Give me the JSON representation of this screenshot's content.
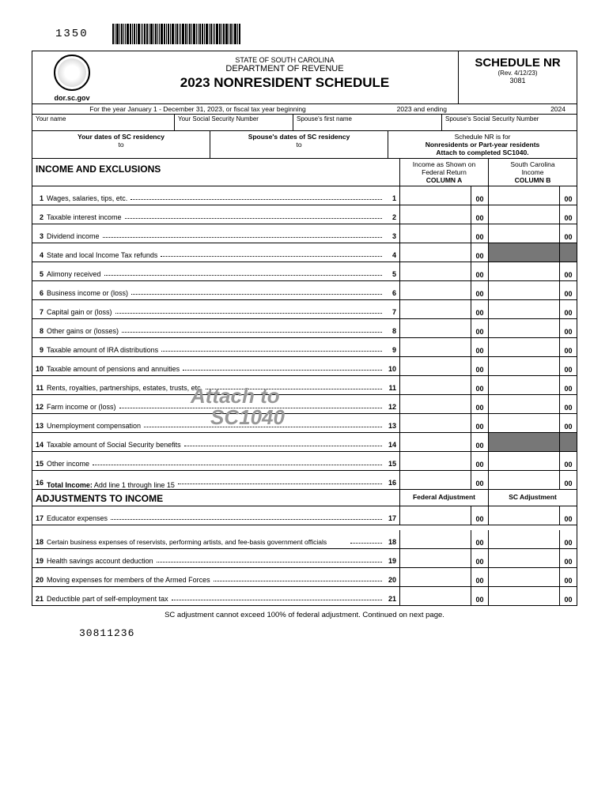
{
  "form_code_top": "1350",
  "header": {
    "state": "STATE OF SOUTH CAROLINA",
    "dept": "DEPARTMENT OF REVENUE",
    "title": "2023 NONRESIDENT SCHEDULE",
    "url": "dor.sc.gov",
    "schedule": "SCHEDULE NR",
    "revision": "(Rev. 4/12/23)",
    "code": "3081"
  },
  "year_row": {
    "text": "For the year January 1 - December 31, 2023,  or fiscal tax year beginning",
    "begin_year": "2023 and ending",
    "end_year": "2024"
  },
  "id_labels": {
    "name": "Your name",
    "ssn": "Your Social Security Number",
    "spouse_first": "Spouse's first name",
    "spouse_ssn": "Spouse's Social Security Number"
  },
  "residency": {
    "your_label": "Your dates of SC residency",
    "to1": "to",
    "spouse_label": "Spouse's dates of SC residency",
    "to2": "to",
    "sched_for": "Schedule NR is for",
    "nonres": "Nonresidents or Part-year residents",
    "attach": "Attach to completed SC1040."
  },
  "section1_title": "INCOME AND EXCLUSIONS",
  "colA_hdr1": "Income as Shown on",
  "colA_hdr2": "Federal Return",
  "colA_hdr3": "COLUMN A",
  "colB_hdr1": "South Carolina",
  "colB_hdr2": "Income",
  "colB_hdr3": "COLUMN B",
  "cents": "00",
  "lines": [
    {
      "n": "1",
      "desc": "Wages, salaries, tips, etc.",
      "shadeB": false
    },
    {
      "n": "2",
      "desc": "Taxable interest income",
      "shadeB": false
    },
    {
      "n": "3",
      "desc": "Dividend income",
      "shadeB": false
    },
    {
      "n": "4",
      "desc": "State and local Income Tax refunds",
      "shadeB": true
    },
    {
      "n": "5",
      "desc": "Alimony received",
      "shadeB": false
    },
    {
      "n": "6",
      "desc": "Business income or (loss)",
      "shadeB": false
    },
    {
      "n": "7",
      "desc": "Capital gain or (loss)",
      "shadeB": false
    },
    {
      "n": "8",
      "desc": "Other gains or (losses)",
      "shadeB": false
    },
    {
      "n": "9",
      "desc": "Taxable amount of IRA distributions",
      "shadeB": false
    },
    {
      "n": "10",
      "desc": "Taxable amount of pensions and annuities",
      "shadeB": false
    },
    {
      "n": "11",
      "desc": "Rents, royalties, partnerships, estates, trusts, etc.",
      "shadeB": false
    },
    {
      "n": "12",
      "desc": "Farm income or (loss)",
      "shadeB": false
    },
    {
      "n": "13",
      "desc": "Unemployment compensation",
      "shadeB": false
    },
    {
      "n": "14",
      "desc": "Taxable amount of Social Security benefits",
      "shadeB": true
    },
    {
      "n": "15",
      "desc": "Other income",
      "shadeB": false
    }
  ],
  "line16": {
    "n": "16",
    "bold": "Total Income:",
    "desc": " Add line 1 through line 15"
  },
  "section2_title": "ADJUSTMENTS TO INCOME",
  "adj_colA": "Federal Adjustment",
  "adj_colB": "SC Adjustment",
  "adj_lines": [
    {
      "n": "17",
      "desc": "Educator expenses"
    },
    {
      "n": "18",
      "desc": "Certain business expenses of reservists, performing artists, and fee-basis government officials",
      "multi": true
    },
    {
      "n": "19",
      "desc": "Health savings account deduction"
    },
    {
      "n": "20",
      "desc": "Moving expenses for members of the Armed Forces"
    },
    {
      "n": "21",
      "desc": "Deductible part of self-employment tax"
    }
  ],
  "watermark1": "Attach  to",
  "watermark2": "SC1040",
  "footer": "SC adjustment cannot exceed 100% of federal adjustment. Continued on next page.",
  "bottom_code": "30811236",
  "colors": {
    "shaded": "#777777",
    "watermark": "#999999"
  }
}
